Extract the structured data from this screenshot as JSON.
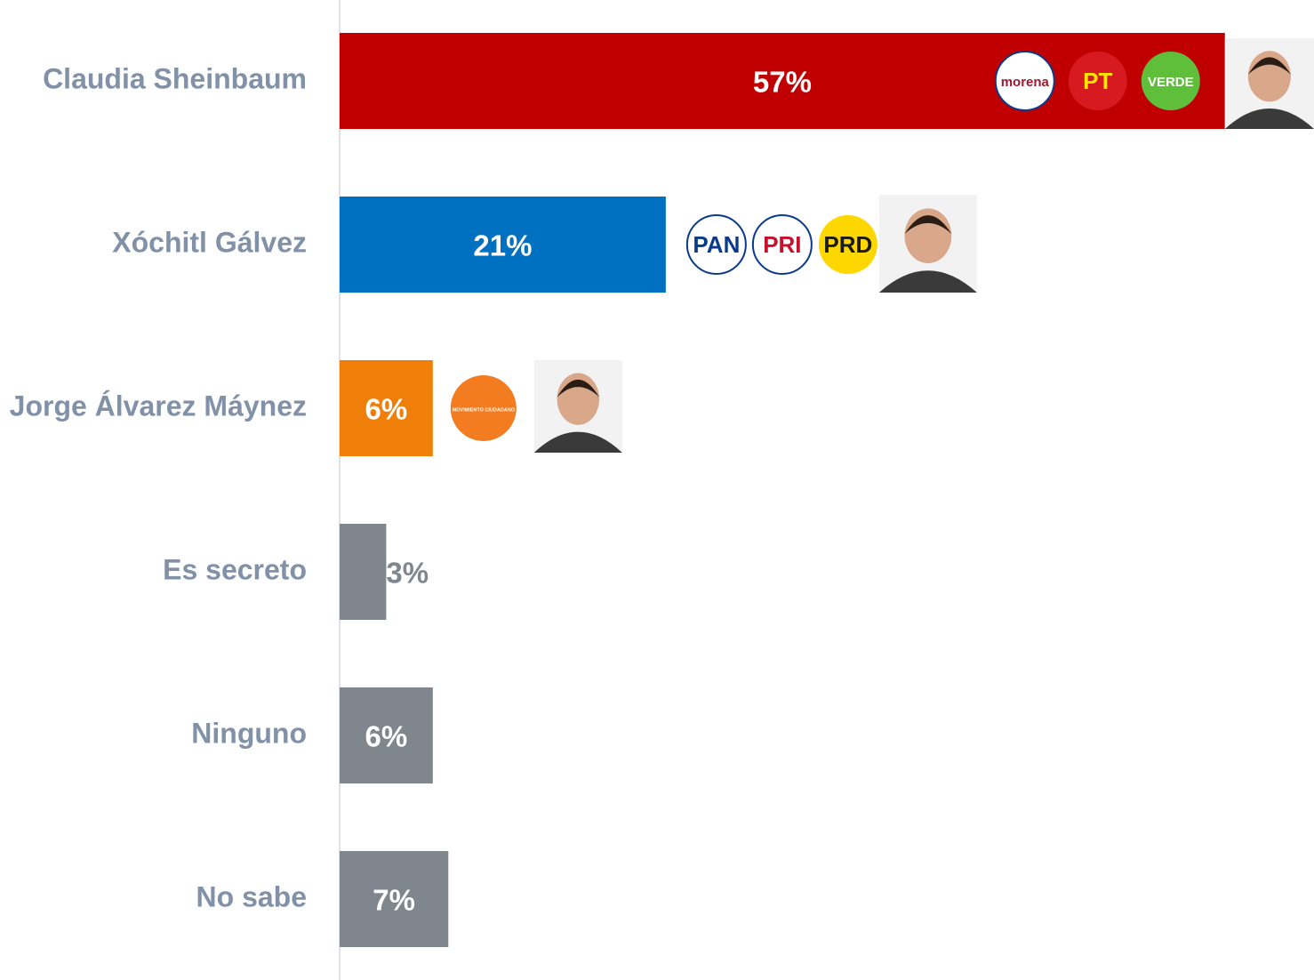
{
  "chart_data": {
    "type": "bar",
    "orientation": "horizontal",
    "categories": [
      "Claudia Sheinbaum",
      "Xóchitl Gálvez",
      "Jorge Álvarez Máynez",
      "Es secreto",
      "Ninguno",
      "No sabe"
    ],
    "values": [
      57,
      21,
      6,
      3,
      6,
      7
    ],
    "value_labels": [
      "57%",
      "21%",
      "6%",
      "3%",
      "6%",
      "7%"
    ],
    "colors": [
      "#c00000",
      "#0070c0",
      "#f07f09",
      "#7f868d",
      "#7f868d",
      "#7f868d"
    ],
    "party_logos": [
      [
        {
          "text": "morena",
          "fill": "#ffffff",
          "text_color": "#9b1b30"
        },
        {
          "text": "PT",
          "fill": "#d71920",
          "text_color": "#ffe500"
        },
        {
          "text": "VERDE",
          "fill": "#5fbf3a",
          "text_color": "#ffffff"
        }
      ],
      [
        {
          "text": "PAN",
          "fill": "#ffffff",
          "text_color": "#0a3a8c"
        },
        {
          "text": "PRI",
          "fill": "#ffffff",
          "text_color": "#c8102e"
        },
        {
          "text": "PRD",
          "fill": "#ffd700",
          "text_color": "#1a1a1a"
        }
      ],
      [
        {
          "text": "MOVIMIENTO CIUDADANO",
          "fill": "#f47c20",
          "text_color": "#ffffff"
        }
      ],
      [],
      [],
      []
    ]
  }
}
